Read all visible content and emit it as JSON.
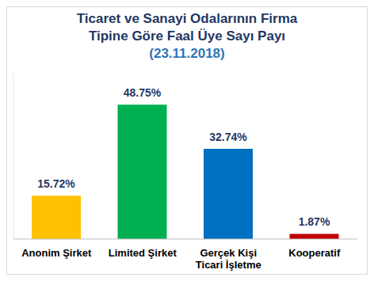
{
  "chart_data": {
    "type": "bar",
    "title": "Ticaret ve Sanayi Odalarının Firma Tipine Göre Faal Üye Sayı Payı",
    "subtitle": "(23.11.2018)",
    "categories": [
      "Anonim Şirket",
      "Limited Şirket",
      "Gerçek Kişi Ticari İşletme",
      "Kooperatif"
    ],
    "values": [
      15.72,
      48.75,
      32.74,
      1.87
    ],
    "value_labels": [
      "15.72%",
      "48.75%",
      "32.74%",
      "1.87%"
    ],
    "colors": [
      "#ffc000",
      "#00b050",
      "#0070c0",
      "#c00000"
    ],
    "ylim": [
      0,
      60
    ],
    "yticks": [],
    "grid": false,
    "data_labels": true,
    "tick_labels": "x"
  }
}
